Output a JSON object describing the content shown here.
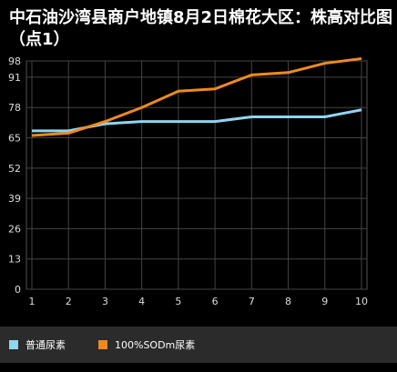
{
  "title": "中石油沙湾县商户地镇8月2日棉花大区：株高对比图（点1）",
  "chart_data": {
    "type": "line",
    "title": "中石油沙湾县商户地镇8月2日棉花大区：株高对比图（点1）",
    "xlabel": "",
    "ylabel": "",
    "x": [
      1,
      2,
      3,
      4,
      5,
      6,
      7,
      8,
      9,
      10
    ],
    "yticks": [
      0,
      13,
      26,
      39,
      52,
      65,
      78,
      91,
      98
    ],
    "ylim": [
      0,
      98
    ],
    "grid": true,
    "legend_position": "bottom",
    "series": [
      {
        "name": "普通尿素",
        "color": "#8fd6ef",
        "values": [
          68,
          68,
          71,
          72,
          72,
          72,
          74,
          74,
          74,
          77
        ]
      },
      {
        "name": "100%SODm尿素",
        "color": "#ee8a1f",
        "values": [
          66,
          67,
          72,
          78,
          85,
          86,
          92,
          93,
          97,
          99
        ]
      }
    ]
  }
}
